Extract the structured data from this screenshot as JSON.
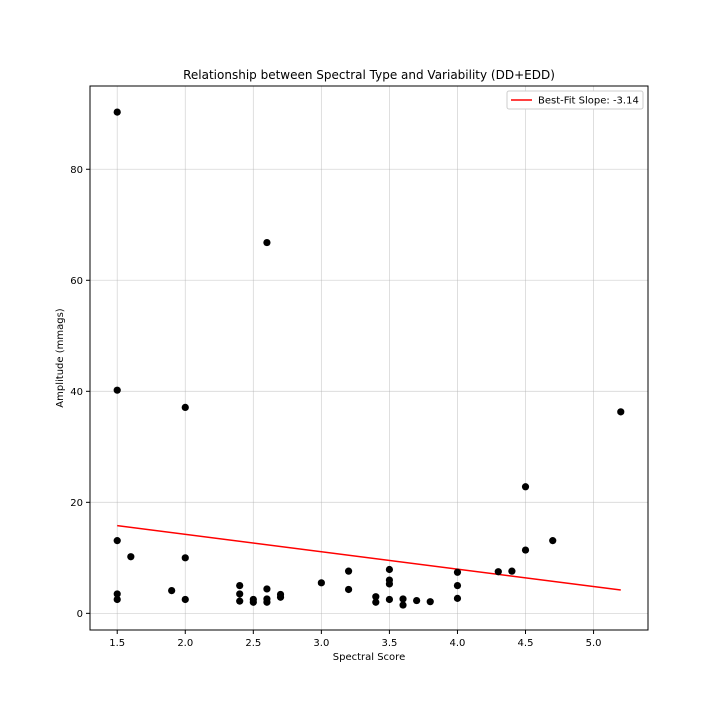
{
  "chart_data": {
    "type": "scatter",
    "title": "Relationship between Spectral Type and Variability (DD+EDD)",
    "xlabel": "Spectral Score",
    "ylabel": "Amplitude (mmags)",
    "xlim": [
      1.3,
      5.4
    ],
    "ylim": [
      -3,
      95
    ],
    "xticks": [
      1.5,
      2.0,
      2.5,
      3.0,
      3.5,
      4.0,
      4.5,
      5.0
    ],
    "xtick_labels": [
      "1.5",
      "2.0",
      "2.5",
      "3.0",
      "3.5",
      "4.0",
      "4.5",
      "5.0"
    ],
    "yticks": [
      0,
      20,
      40,
      60,
      80
    ],
    "ytick_labels": [
      "0",
      "20",
      "40",
      "60",
      "80"
    ],
    "grid": true,
    "legend_position": "top-right",
    "series": [
      {
        "kind": "scatter",
        "color": "#000000",
        "points": [
          {
            "x": 1.5,
            "y": 90.3
          },
          {
            "x": 1.5,
            "y": 40.2
          },
          {
            "x": 1.5,
            "y": 13.1
          },
          {
            "x": 1.5,
            "y": 3.5
          },
          {
            "x": 1.5,
            "y": 2.5
          },
          {
            "x": 1.6,
            "y": 10.2
          },
          {
            "x": 1.9,
            "y": 4.1
          },
          {
            "x": 2.0,
            "y": 37.1
          },
          {
            "x": 2.0,
            "y": 10.0
          },
          {
            "x": 2.0,
            "y": 2.5
          },
          {
            "x": 2.4,
            "y": 5.0
          },
          {
            "x": 2.4,
            "y": 3.5
          },
          {
            "x": 2.4,
            "y": 2.2
          },
          {
            "x": 2.5,
            "y": 2.5
          },
          {
            "x": 2.5,
            "y": 2.0
          },
          {
            "x": 2.6,
            "y": 66.8
          },
          {
            "x": 2.6,
            "y": 4.4
          },
          {
            "x": 2.6,
            "y": 2.6
          },
          {
            "x": 2.6,
            "y": 2.0
          },
          {
            "x": 2.7,
            "y": 3.4
          },
          {
            "x": 2.7,
            "y": 2.9
          },
          {
            "x": 3.0,
            "y": 5.5
          },
          {
            "x": 3.2,
            "y": 7.6
          },
          {
            "x": 3.2,
            "y": 4.3
          },
          {
            "x": 3.4,
            "y": 3.0
          },
          {
            "x": 3.4,
            "y": 2.0
          },
          {
            "x": 3.5,
            "y": 7.9
          },
          {
            "x": 3.5,
            "y": 6.0
          },
          {
            "x": 3.5,
            "y": 5.3
          },
          {
            "x": 3.5,
            "y": 2.5
          },
          {
            "x": 3.6,
            "y": 2.6
          },
          {
            "x": 3.6,
            "y": 1.5
          },
          {
            "x": 3.7,
            "y": 2.3
          },
          {
            "x": 3.8,
            "y": 2.1
          },
          {
            "x": 4.0,
            "y": 7.4
          },
          {
            "x": 4.0,
            "y": 5.0
          },
          {
            "x": 4.0,
            "y": 2.7
          },
          {
            "x": 4.3,
            "y": 7.5
          },
          {
            "x": 4.4,
            "y": 7.6
          },
          {
            "x": 4.5,
            "y": 22.8
          },
          {
            "x": 4.5,
            "y": 11.4
          },
          {
            "x": 4.7,
            "y": 13.1
          },
          {
            "x": 5.2,
            "y": 36.3
          }
        ]
      },
      {
        "kind": "line",
        "name": "Best-Fit Slope: -3.14",
        "color": "#ff0000",
        "points": [
          {
            "x": 1.5,
            "y": 15.8
          },
          {
            "x": 5.2,
            "y": 4.2
          }
        ]
      }
    ]
  }
}
